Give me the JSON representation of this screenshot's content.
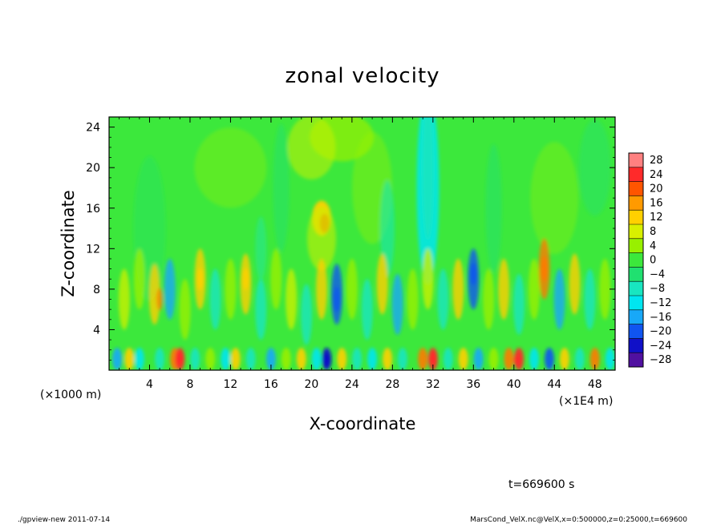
{
  "chart_data": {
    "type": "heatmap",
    "title": "zonal velocity",
    "xlabel": "X-coordinate",
    "ylabel": "Z-coordinate",
    "x_unit_left": "(×1000 m)",
    "x_unit_right": "(×1E4 m)",
    "xlim": [
      0,
      50
    ],
    "ylim": [
      0,
      25
    ],
    "x_ticks": [
      "4",
      "8",
      "12",
      "16",
      "20",
      "24",
      "28",
      "32",
      "36",
      "40",
      "44",
      "48"
    ],
    "x_tick_values": [
      4,
      8,
      12,
      16,
      20,
      24,
      28,
      32,
      36,
      40,
      44,
      48
    ],
    "y_ticks": [
      "4",
      "8",
      "12",
      "16",
      "20",
      "24"
    ],
    "y_tick_values": [
      4,
      8,
      12,
      16,
      20,
      24
    ],
    "colorbar": {
      "levels": [
        "28",
        "24",
        "20",
        "16",
        "12",
        "8",
        "4",
        "0",
        "−4",
        "−8",
        "−12",
        "−16",
        "−20",
        "−24",
        "−28"
      ],
      "colors": [
        "#ff8080",
        "#ff2a2a",
        "#ff5500",
        "#ff9a00",
        "#ffd000",
        "#d8f000",
        "#98f000",
        "#3ce83c",
        "#20e070",
        "#18e6c0",
        "#00e6f0",
        "#18a8f8",
        "#1055f0",
        "#1010c8",
        "#5010a0"
      ]
    },
    "time_label": "t=669600 s"
  },
  "footer": {
    "left": "./gpview-new  2011-07-14",
    "right": "MarsCond_VelX.nc@VelX,x=0:500000,z=0:25000,t=669600"
  }
}
